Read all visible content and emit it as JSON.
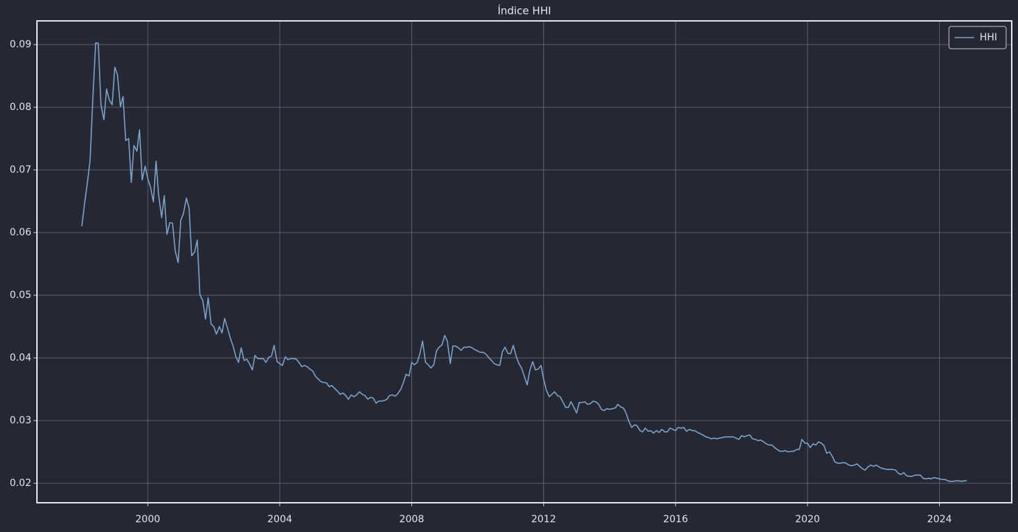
{
  "chart_data": {
    "type": "line",
    "title": "Índice HHI",
    "xlim": [
      1996.64,
      2026.19
    ],
    "xticks": [
      2000,
      2004,
      2008,
      2012,
      2016,
      2020,
      2024
    ],
    "ylim": [
      0.01689,
      0.09378
    ],
    "yticks": [
      0.02,
      0.03,
      0.04,
      0.05,
      0.06,
      0.07,
      0.08,
      0.09
    ],
    "grid": true,
    "legend": "upper right",
    "x": [
      1998,
      1998.08,
      1998.17,
      1998.25,
      1998.33,
      1998.42,
      1998.5,
      1998.58,
      1998.67,
      1998.75,
      1998.83,
      1998.92,
      1999,
      1999.08,
      1999.17,
      1999.25,
      1999.33,
      1999.42,
      1999.5,
      1999.58,
      1999.67,
      1999.75,
      1999.83,
      1999.92,
      2000,
      2000.08,
      2000.17,
      2000.25,
      2000.33,
      2000.42,
      2000.5,
      2000.58,
      2000.67,
      2000.75,
      2000.83,
      2000.92,
      2001,
      2001.08,
      2001.17,
      2001.25,
      2001.33,
      2001.42,
      2001.5,
      2001.58,
      2001.67,
      2001.75,
      2001.83,
      2001.92,
      2002,
      2002.08,
      2002.17,
      2002.25,
      2002.33,
      2002.42,
      2002.5,
      2002.58,
      2002.67,
      2002.75,
      2002.83,
      2002.92,
      2003,
      2003.08,
      2003.17,
      2003.25,
      2003.33,
      2003.42,
      2003.5,
      2003.58,
      2003.67,
      2003.75,
      2003.83,
      2003.92,
      2004,
      2004.08,
      2004.17,
      2004.25,
      2004.33,
      2004.42,
      2004.5,
      2004.58,
      2004.67,
      2004.75,
      2004.83,
      2004.92,
      2005,
      2005.08,
      2005.17,
      2005.25,
      2005.33,
      2005.42,
      2005.5,
      2005.58,
      2005.67,
      2005.75,
      2005.83,
      2005.92,
      2006,
      2006.08,
      2006.17,
      2006.25,
      2006.33,
      2006.42,
      2006.5,
      2006.58,
      2006.67,
      2006.75,
      2006.83,
      2006.92,
      2007,
      2007.08,
      2007.17,
      2007.25,
      2007.33,
      2007.42,
      2007.5,
      2007.58,
      2007.67,
      2007.75,
      2007.83,
      2007.92,
      2008,
      2008.08,
      2008.17,
      2008.25,
      2008.33,
      2008.42,
      2008.5,
      2008.58,
      2008.67,
      2008.75,
      2008.83,
      2008.92,
      2009,
      2009.08,
      2009.17,
      2009.25,
      2009.33,
      2009.42,
      2009.5,
      2009.58,
      2009.67,
      2009.75,
      2009.83,
      2009.92,
      2010,
      2010.08,
      2010.17,
      2010.25,
      2010.33,
      2010.42,
      2010.5,
      2010.58,
      2010.67,
      2010.75,
      2010.83,
      2010.92,
      2011,
      2011.08,
      2011.17,
      2011.25,
      2011.33,
      2011.42,
      2011.5,
      2011.58,
      2011.67,
      2011.75,
      2011.83,
      2011.92,
      2012,
      2012.08,
      2012.17,
      2012.25,
      2012.33,
      2012.42,
      2012.5,
      2012.58,
      2012.67,
      2012.75,
      2012.83,
      2012.92,
      2013,
      2013.08,
      2013.17,
      2013.25,
      2013.33,
      2013.42,
      2013.5,
      2013.58,
      2013.67,
      2013.75,
      2013.83,
      2013.92,
      2014,
      2014.08,
      2014.17,
      2014.25,
      2014.33,
      2014.42,
      2014.5,
      2014.58,
      2014.67,
      2014.75,
      2014.83,
      2014.92,
      2015,
      2015.08,
      2015.17,
      2015.25,
      2015.33,
      2015.42,
      2015.5,
      2015.58,
      2015.67,
      2015.75,
      2015.83,
      2015.92,
      2016,
      2016.08,
      2016.17,
      2016.25,
      2016.33,
      2016.42,
      2016.5,
      2016.58,
      2016.67,
      2016.75,
      2016.83,
      2016.92,
      2017,
      2017.08,
      2017.17,
      2017.25,
      2017.33,
      2017.42,
      2017.5,
      2017.58,
      2017.67,
      2017.75,
      2017.83,
      2017.92,
      2018,
      2018.08,
      2018.17,
      2018.25,
      2018.33,
      2018.42,
      2018.5,
      2018.58,
      2018.67,
      2018.75,
      2018.83,
      2018.92,
      2019,
      2019.08,
      2019.17,
      2019.25,
      2019.33,
      2019.42,
      2019.5,
      2019.58,
      2019.67,
      2019.75,
      2019.83,
      2019.92,
      2020,
      2020.08,
      2020.17,
      2020.25,
      2020.33,
      2020.42,
      2020.5,
      2020.58,
      2020.67,
      2020.75,
      2020.83,
      2020.92,
      2021,
      2021.08,
      2021.17,
      2021.25,
      2021.33,
      2021.42,
      2021.5,
      2021.58,
      2021.67,
      2021.75,
      2021.83,
      2021.92,
      2022,
      2022.08,
      2022.17,
      2022.25,
      2022.33,
      2022.42,
      2022.5,
      2022.58,
      2022.67,
      2022.75,
      2022.83,
      2022.92,
      2023,
      2023.08,
      2023.17,
      2023.25,
      2023.33,
      2023.42,
      2023.5,
      2023.58,
      2023.67,
      2023.75,
      2023.83,
      2023.92,
      2024,
      2024.08,
      2024.17,
      2024.25,
      2024.33,
      2024.42,
      2024.5,
      2024.58,
      2024.67,
      2024.75,
      2024.83
    ],
    "series": [
      {
        "name": "HHI",
        "color": "#7fa2c6",
        "values": [
          0.061,
          0.0645,
          0.068,
          0.0715,
          0.081,
          0.0903,
          0.0902,
          0.0804,
          0.078,
          0.0829,
          0.0812,
          0.0804,
          0.0864,
          0.0852,
          0.0801,
          0.0817,
          0.0747,
          0.075,
          0.068,
          0.0739,
          0.073,
          0.0764,
          0.0684,
          0.0706,
          0.0686,
          0.0673,
          0.0649,
          0.0714,
          0.0659,
          0.0624,
          0.0659,
          0.0597,
          0.0616,
          0.0615,
          0.0571,
          0.0552,
          0.062,
          0.063,
          0.0655,
          0.064,
          0.0563,
          0.0569,
          0.0588,
          0.0501,
          0.0491,
          0.0462,
          0.0496,
          0.0454,
          0.045,
          0.0438,
          0.045,
          0.044,
          0.0463,
          0.0447,
          0.0432,
          0.042,
          0.0402,
          0.0393,
          0.0416,
          0.0396,
          0.0398,
          0.0391,
          0.0381,
          0.0404,
          0.0399,
          0.0399,
          0.0399,
          0.0393,
          0.0401,
          0.0403,
          0.042,
          0.0394,
          0.0391,
          0.0388,
          0.0402,
          0.0397,
          0.0399,
          0.0399,
          0.0398,
          0.0393,
          0.0386,
          0.0388,
          0.0386,
          0.0382,
          0.0379,
          0.0371,
          0.0366,
          0.0362,
          0.0361,
          0.036,
          0.0354,
          0.0356,
          0.0351,
          0.0347,
          0.0342,
          0.0344,
          0.034,
          0.0334,
          0.0341,
          0.0338,
          0.0341,
          0.0346,
          0.0342,
          0.034,
          0.0334,
          0.0337,
          0.0336,
          0.0328,
          0.0331,
          0.0331,
          0.0332,
          0.0334,
          0.034,
          0.0341,
          0.0339,
          0.0343,
          0.035,
          0.0361,
          0.0374,
          0.0371,
          0.0393,
          0.0389,
          0.0393,
          0.0407,
          0.0427,
          0.0393,
          0.0389,
          0.0384,
          0.0389,
          0.0411,
          0.0417,
          0.0421,
          0.0436,
          0.0427,
          0.0391,
          0.0419,
          0.0419,
          0.0416,
          0.0412,
          0.0417,
          0.0417,
          0.0418,
          0.0416,
          0.0413,
          0.0411,
          0.0409,
          0.0409,
          0.0406,
          0.0401,
          0.0396,
          0.0391,
          0.0389,
          0.0388,
          0.041,
          0.0417,
          0.0407,
          0.0407,
          0.042,
          0.0402,
          0.0391,
          0.0384,
          0.037,
          0.0357,
          0.038,
          0.0394,
          0.0381,
          0.0382,
          0.0388,
          0.0366,
          0.0349,
          0.0338,
          0.0342,
          0.0346,
          0.034,
          0.0338,
          0.033,
          0.0321,
          0.0321,
          0.033,
          0.0321,
          0.0312,
          0.0329,
          0.0329,
          0.033,
          0.0326,
          0.0327,
          0.0331,
          0.033,
          0.0326,
          0.0318,
          0.0316,
          0.0319,
          0.0318,
          0.0319,
          0.032,
          0.0326,
          0.0322,
          0.032,
          0.0312,
          0.0299,
          0.0289,
          0.0293,
          0.0292,
          0.0284,
          0.0282,
          0.0288,
          0.0283,
          0.0284,
          0.028,
          0.0284,
          0.0281,
          0.0286,
          0.0282,
          0.0282,
          0.0288,
          0.0286,
          0.0284,
          0.0289,
          0.0288,
          0.0289,
          0.0283,
          0.0286,
          0.0284,
          0.0284,
          0.0281,
          0.0279,
          0.0277,
          0.0274,
          0.0273,
          0.0271,
          0.0272,
          0.0271,
          0.0272,
          0.0273,
          0.0274,
          0.0274,
          0.0274,
          0.0274,
          0.0272,
          0.027,
          0.0276,
          0.0274,
          0.0276,
          0.0277,
          0.0271,
          0.027,
          0.0268,
          0.0269,
          0.0266,
          0.0263,
          0.0261,
          0.0261,
          0.0257,
          0.0254,
          0.0251,
          0.0251,
          0.0252,
          0.025,
          0.0251,
          0.0251,
          0.0254,
          0.0254,
          0.027,
          0.0264,
          0.0264,
          0.0257,
          0.0263,
          0.0261,
          0.0266,
          0.0264,
          0.026,
          0.0248,
          0.025,
          0.0243,
          0.0234,
          0.0232,
          0.0232,
          0.0233,
          0.0232,
          0.0229,
          0.0228,
          0.0229,
          0.0231,
          0.0227,
          0.0223,
          0.0221,
          0.0226,
          0.0229,
          0.0227,
          0.0229,
          0.0226,
          0.0224,
          0.0223,
          0.0222,
          0.0222,
          0.0222,
          0.0221,
          0.0216,
          0.0214,
          0.0217,
          0.0212,
          0.0211,
          0.0211,
          0.0213,
          0.0213,
          0.0213,
          0.0208,
          0.0207,
          0.0208,
          0.0207,
          0.0209,
          0.0208,
          0.0207,
          0.0206,
          0.0206,
          0.0204,
          0.0203,
          0.0203,
          0.0204,
          0.0204,
          0.0203,
          0.0204,
          0.0204
        ]
      }
    ]
  }
}
